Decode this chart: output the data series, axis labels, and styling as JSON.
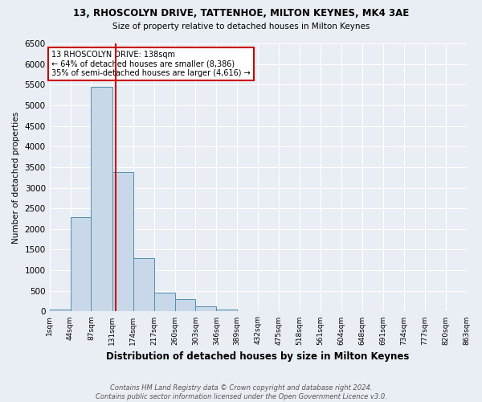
{
  "title1": "13, RHOSCOLYN DRIVE, TATTENHOE, MILTON KEYNES, MK4 3AE",
  "title2": "Size of property relative to detached houses in Milton Keynes",
  "xlabel": "Distribution of detached houses by size in Milton Keynes",
  "ylabel": "Number of detached properties",
  "footnote": "Contains HM Land Registry data © Crown copyright and database right 2024.\nContains public sector information licensed under the Open Government Licence v3.0.",
  "annotation_line1": "13 RHOSCOLYN DRIVE: 138sqm",
  "annotation_line2": "← 64% of detached houses are smaller (8,386)",
  "annotation_line3": "35% of semi-detached houses are larger (4,616) →",
  "property_size": 138,
  "bin_edges": [
    1,
    44,
    87,
    131,
    174,
    217,
    260,
    303,
    346,
    389,
    432,
    475,
    518,
    561,
    604,
    648,
    691,
    734,
    777,
    820,
    863
  ],
  "bin_labels": [
    "1sqm",
    "44sqm",
    "87sqm",
    "131sqm",
    "174sqm",
    "217sqm",
    "260sqm",
    "303sqm",
    "346sqm",
    "389sqm",
    "432sqm",
    "475sqm",
    "518sqm",
    "561sqm",
    "604sqm",
    "648sqm",
    "691sqm",
    "734sqm",
    "777sqm",
    "820sqm",
    "863sqm"
  ],
  "bar_values": [
    50,
    2280,
    5450,
    3380,
    1290,
    460,
    300,
    120,
    55,
    18,
    8,
    3,
    1,
    0,
    0,
    0,
    0,
    0,
    0,
    0
  ],
  "bar_color": "#c8d8e8",
  "bar_edge_color": "#5090b0",
  "red_line_color": "#cc0000",
  "background_color": "#e8eef4",
  "grid_color": "#ffffff",
  "ylim": [
    0,
    6500
  ],
  "yticks": [
    0,
    500,
    1000,
    1500,
    2000,
    2500,
    3000,
    3500,
    4000,
    4500,
    5000,
    5500,
    6000,
    6500
  ]
}
